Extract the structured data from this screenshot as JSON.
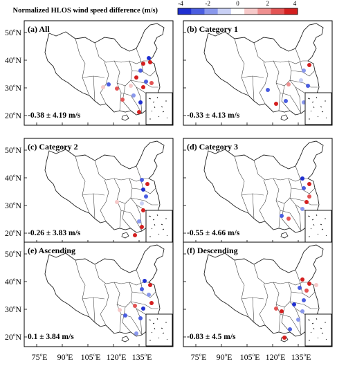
{
  "colorbar": {
    "title": "Normalized HLOS wind speed difference (m/s)",
    "ticks": [
      "-4",
      "-2",
      "0",
      "2",
      "4"
    ],
    "colors": [
      "#1f2fd1",
      "#4a5de0",
      "#8a98ec",
      "#c9d0f5",
      "#ffffff",
      "#f6c9c9",
      "#ee8f8f",
      "#e35454",
      "#d41f1f"
    ]
  },
  "axes": {
    "lat_labels": [
      {
        "deg": "50",
        "suffix": "N"
      },
      {
        "deg": "40",
        "suffix": "N"
      },
      {
        "deg": "30",
        "suffix": "N"
      },
      {
        "deg": "20",
        "suffix": "N"
      }
    ],
    "lon_labels": [
      {
        "deg": "75",
        "suffix": "E"
      },
      {
        "deg": "90",
        "suffix": "E"
      },
      {
        "deg": "105",
        "suffix": "E"
      },
      {
        "deg": "120",
        "suffix": "E"
      },
      {
        "deg": "135",
        "suffix": "E"
      }
    ]
  },
  "panels": [
    {
      "title": "(a) All",
      "stat": "-0.38 ± 4.19 m/s"
    },
    {
      "title": "(b) Category 1",
      "stat": "-0.33 ± 4.13 m/s"
    },
    {
      "title": "(c) Category 2",
      "stat": "-0.26 ± 3.83 m/s"
    },
    {
      "title": "(d) Category 3",
      "stat": "-0.55 ± 4.66 m/s"
    },
    {
      "title": "(e) Ascending",
      "stat": "0.1 ± 3.84 m/s"
    },
    {
      "title": "(f) Descending",
      "stat": "-0.83 ± 4.5 m/s"
    }
  ]
}
